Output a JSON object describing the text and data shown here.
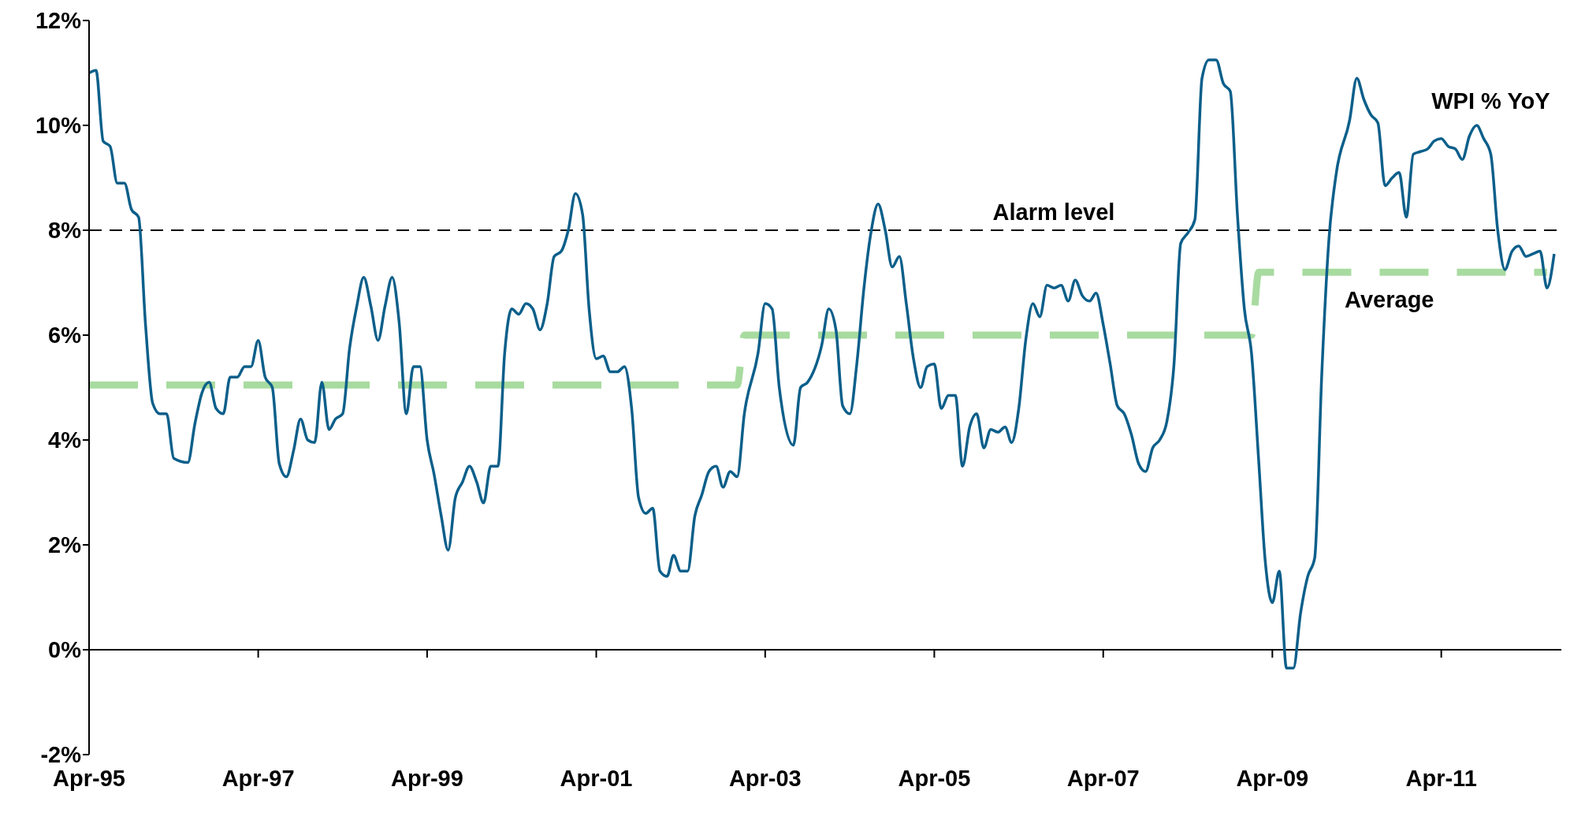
{
  "chart_data": {
    "type": "line",
    "xlim": [
      "1995-04",
      "2012-09"
    ],
    "xticks": [
      {
        "value": "1995-04",
        "label": "Apr-95"
      },
      {
        "value": "1997-04",
        "label": "Apr-97"
      },
      {
        "value": "1999-04",
        "label": "Apr-99"
      },
      {
        "value": "2001-04",
        "label": "Apr-01"
      },
      {
        "value": "2003-04",
        "label": "Apr-03"
      },
      {
        "value": "2005-04",
        "label": "Apr-05"
      },
      {
        "value": "2007-04",
        "label": "Apr-07"
      },
      {
        "value": "2009-04",
        "label": "Apr-09"
      },
      {
        "value": "2011-04",
        "label": "Apr-11"
      }
    ],
    "ylim": [
      -2,
      12
    ],
    "yticks": [
      {
        "value": -2,
        "label": "-2%"
      },
      {
        "value": 0,
        "label": "0%"
      },
      {
        "value": 2,
        "label": "2%"
      },
      {
        "value": 4,
        "label": "4%"
      },
      {
        "value": 6,
        "label": "6%"
      },
      {
        "value": 8,
        "label": "8%"
      },
      {
        "value": 10,
        "label": "10%"
      },
      {
        "value": 12,
        "label": "12%"
      }
    ],
    "marker": "none",
    "ref_lines": [
      {
        "axis": "y",
        "value": 8,
        "label": "Alarm level",
        "color": "#000000",
        "line_style": "dashed"
      }
    ],
    "series": [
      {
        "name": "WPI % YoY",
        "color": "#0b5f8a",
        "line_style": "solid",
        "x": [
          "1995-04",
          "1995-05",
          "1995-06",
          "1995-07",
          "1995-08",
          "1995-09",
          "1995-10",
          "1995-11",
          "1995-12",
          "1996-01",
          "1996-02",
          "1996-03",
          "1996-04",
          "1996-06",
          "1996-07",
          "1996-08",
          "1996-09",
          "1996-10",
          "1996-11",
          "1996-12",
          "1997-01",
          "1997-02",
          "1997-03",
          "1997-04",
          "1997-05",
          "1997-06",
          "1997-07",
          "1997-08",
          "1997-09",
          "1997-10",
          "1997-11",
          "1997-12",
          "1998-01",
          "1998-02",
          "1998-03",
          "1998-04",
          "1998-05",
          "1998-06",
          "1998-07",
          "1998-08",
          "1998-09",
          "1998-10",
          "1998-11",
          "1998-12",
          "1999-01",
          "1999-02",
          "1999-03",
          "1999-04",
          "1999-05",
          "1999-06",
          "1999-07",
          "1999-08",
          "1999-09",
          "1999-10",
          "1999-11",
          "1999-12",
          "2000-01",
          "2000-02",
          "2000-03",
          "2000-04",
          "2000-05",
          "2000-06",
          "2000-07",
          "2000-08",
          "2000-09",
          "2000-10",
          "2000-11",
          "2000-12",
          "2001-01",
          "2001-02",
          "2001-03",
          "2001-04",
          "2001-05",
          "2001-06",
          "2001-07",
          "2001-08",
          "2001-09",
          "2001-10",
          "2001-11",
          "2001-12",
          "2002-01",
          "2002-02",
          "2002-03",
          "2002-04",
          "2002-05",
          "2002-06",
          "2002-07",
          "2002-08",
          "2002-09",
          "2002-10",
          "2002-11",
          "2002-12",
          "2003-01",
          "2003-03",
          "2003-04",
          "2003-05",
          "2003-06",
          "2003-08",
          "2003-09",
          "2003-10",
          "2003-12",
          "2004-01",
          "2004-02",
          "2004-03",
          "2004-04",
          "2004-05",
          "2004-06",
          "2004-07",
          "2004-08",
          "2004-09",
          "2004-10",
          "2004-11",
          "2004-12",
          "2005-01",
          "2005-02",
          "2005-03",
          "2005-04",
          "2005-05",
          "2005-06",
          "2005-07",
          "2005-08",
          "2005-09",
          "2005-10",
          "2005-11",
          "2005-12",
          "2006-01",
          "2006-02",
          "2006-03",
          "2006-04",
          "2006-05",
          "2006-06",
          "2006-07",
          "2006-08",
          "2006-09",
          "2006-10",
          "2006-11",
          "2006-12",
          "2007-01",
          "2007-02",
          "2007-03",
          "2007-04",
          "2007-05",
          "2007-06",
          "2007-07",
          "2007-08",
          "2007-09",
          "2007-10",
          "2007-11",
          "2007-12",
          "2008-01",
          "2008-02",
          "2008-03",
          "2008-04",
          "2008-05",
          "2008-06",
          "2008-07",
          "2008-08",
          "2008-09",
          "2008-10",
          "2008-11",
          "2008-12",
          "2009-01",
          "2009-02",
          "2009-03",
          "2009-04",
          "2009-05",
          "2009-06",
          "2009-07",
          "2009-08",
          "2009-09",
          "2009-10",
          "2009-11",
          "2009-12",
          "2010-01",
          "2010-03",
          "2010-04",
          "2010-05",
          "2010-06",
          "2010-07",
          "2010-08",
          "2010-09",
          "2010-10",
          "2010-11",
          "2010-12",
          "2011-01",
          "2011-02",
          "2011-03",
          "2011-04",
          "2011-05",
          "2011-06",
          "2011-07",
          "2011-08",
          "2011-09",
          "2011-10",
          "2011-11",
          "2011-12",
          "2012-01",
          "2012-02",
          "2012-03",
          "2012-04",
          "2012-05",
          "2012-06",
          "2012-07",
          "2012-08"
        ],
        "values": [
          11.0,
          11.05,
          9.7,
          9.6,
          8.9,
          8.9,
          8.4,
          8.25,
          6.2,
          4.7,
          4.5,
          4.5,
          3.65,
          3.57,
          4.3,
          4.9,
          5.1,
          4.6,
          4.5,
          5.2,
          5.2,
          5.4,
          5.4,
          5.9,
          5.2,
          5.0,
          3.55,
          3.3,
          3.8,
          4.4,
          4.0,
          3.95,
          5.1,
          4.2,
          4.4,
          4.5,
          5.75,
          6.55,
          7.1,
          6.55,
          5.9,
          6.55,
          7.1,
          6.25,
          4.5,
          5.4,
          5.4,
          4.0,
          3.35,
          2.55,
          1.9,
          2.9,
          3.2,
          3.5,
          3.2,
          2.8,
          3.5,
          3.5,
          5.65,
          6.5,
          6.4,
          6.6,
          6.5,
          6.1,
          6.6,
          7.5,
          7.6,
          8.0,
          8.7,
          8.3,
          6.5,
          5.55,
          5.6,
          5.3,
          5.3,
          5.4,
          4.6,
          2.9,
          2.6,
          2.7,
          1.5,
          1.4,
          1.8,
          1.5,
          1.5,
          2.55,
          2.95,
          3.4,
          3.5,
          3.1,
          3.4,
          3.3,
          4.5,
          5.65,
          6.6,
          6.5,
          5.0,
          3.9,
          5.0,
          5.1,
          5.8,
          6.5,
          6.1,
          4.65,
          4.5,
          5.45,
          6.9,
          7.95,
          8.5,
          8.0,
          7.3,
          7.5,
          6.6,
          5.55,
          5.0,
          5.4,
          5.45,
          4.6,
          4.85,
          4.85,
          3.5,
          4.25,
          4.5,
          3.85,
          4.2,
          4.15,
          4.25,
          3.95,
          4.6,
          5.9,
          6.6,
          6.35,
          6.95,
          6.9,
          6.95,
          6.65,
          7.05,
          6.75,
          6.65,
          6.8,
          6.2,
          5.45,
          4.65,
          4.5,
          4.1,
          3.55,
          3.4,
          3.85,
          4.0,
          4.35,
          5.45,
          7.75,
          7.95,
          8.2,
          10.9,
          11.25,
          11.25,
          10.8,
          10.65,
          8.3,
          6.5,
          5.65,
          3.6,
          1.7,
          0.9,
          1.5,
          -0.35,
          -0.35,
          0.7,
          1.4,
          1.75,
          5.3,
          7.8,
          9.05,
          10.1,
          10.9,
          10.5,
          10.2,
          10.05,
          8.85,
          9.0,
          9.1,
          8.25,
          9.45,
          9.5,
          9.55,
          9.7,
          9.75,
          9.6,
          9.55,
          9.35,
          9.8,
          10.0,
          9.75,
          9.45,
          8.0,
          7.25,
          7.6,
          7.7,
          7.5,
          7.55,
          7.6,
          6.9,
          7.55
        ]
      },
      {
        "name": "Average",
        "color": "#a8dba0",
        "line_style": "dashed",
        "x": [
          "1995-04",
          "2002-12",
          "2003-01",
          "2009-01",
          "2009-02",
          "2012-07"
        ],
        "values": [
          5.05,
          5.05,
          6.0,
          6.0,
          7.2,
          7.2
        ]
      }
    ]
  }
}
